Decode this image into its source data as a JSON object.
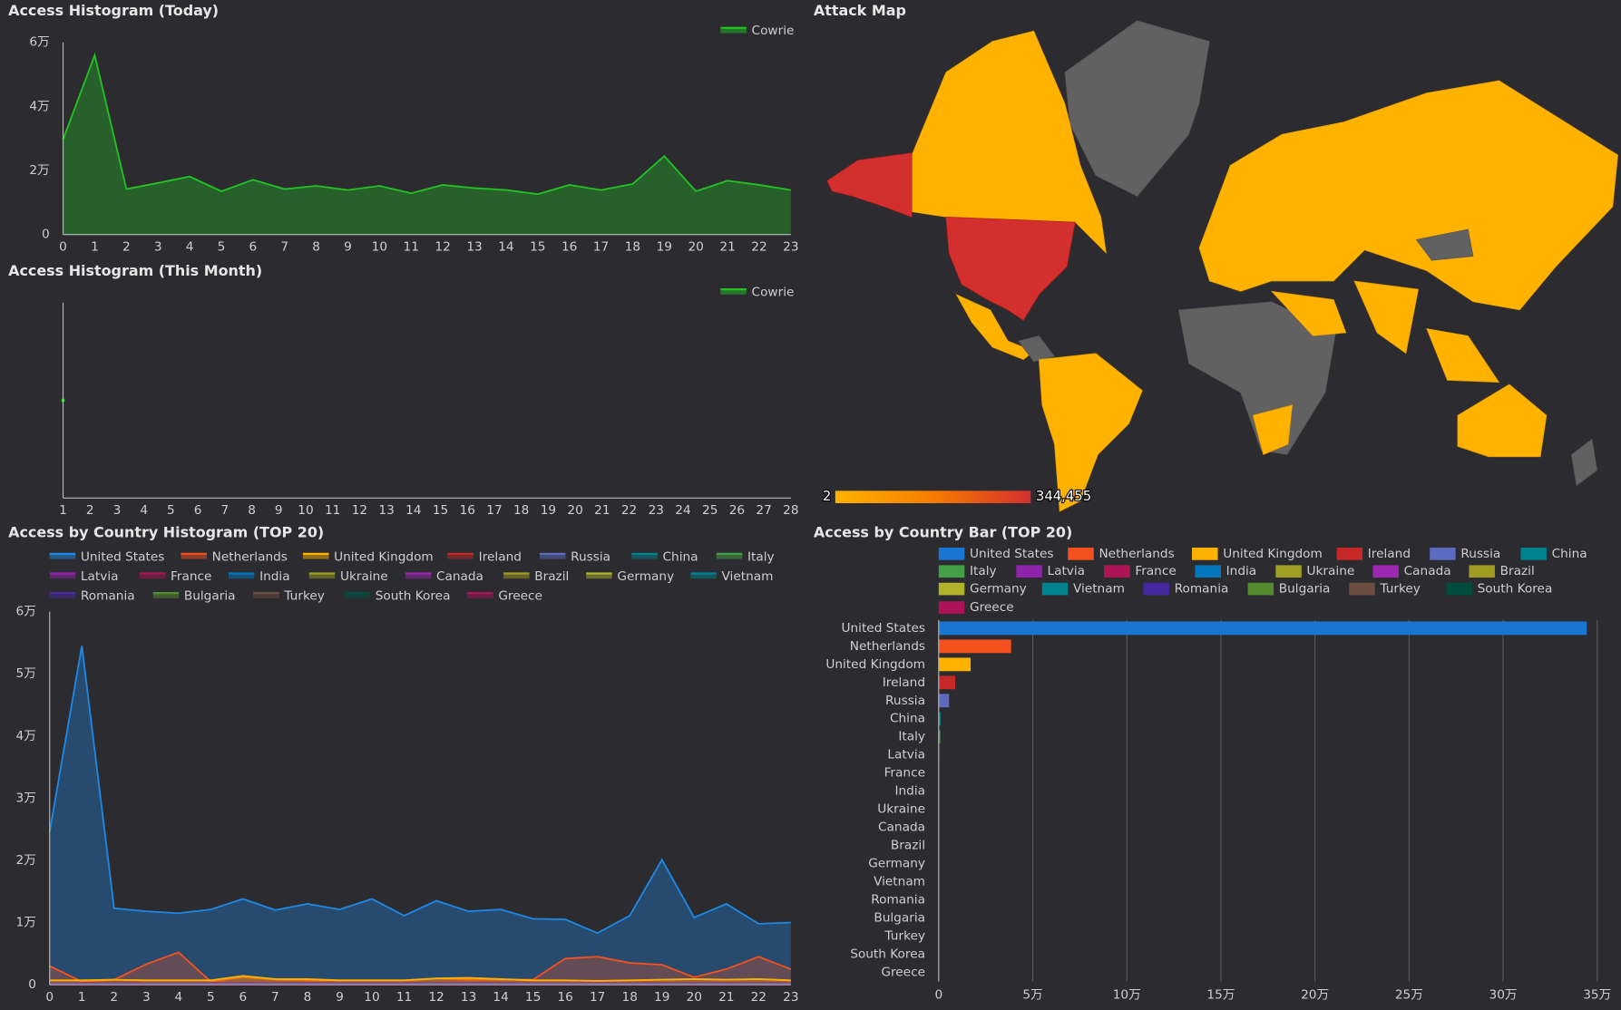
{
  "chart_data": [
    {
      "type": "area",
      "title": "Access Histogram (Today)",
      "x": [
        0,
        1,
        2,
        3,
        4,
        5,
        6,
        7,
        8,
        9,
        10,
        11,
        12,
        13,
        14,
        15,
        16,
        17,
        18,
        19,
        20,
        21,
        22,
        23
      ],
      "xlim": [
        0,
        23
      ],
      "ylim": [
        0,
        60000
      ],
      "yticks": [
        0,
        {
          "value": 20000,
          "label": "2万"
        },
        {
          "value": 40000,
          "label": "4万"
        },
        {
          "value": 60000,
          "label": "6万"
        }
      ],
      "grid": false,
      "legend": "top-right",
      "series": [
        {
          "name": "Cowrie",
          "color": "#22c222",
          "values": [
            29700,
            56000,
            14200,
            16100,
            18100,
            13500,
            17100,
            14200,
            15200,
            13900,
            15200,
            12900,
            15500,
            14500,
            13900,
            12600,
            15500,
            13900,
            15800,
            24500,
            13500,
            16800,
            15500,
            13900
          ]
        }
      ]
    },
    {
      "type": "area",
      "title": "Access Histogram (This Month)",
      "x": [
        1,
        2,
        3,
        4,
        5,
        6,
        7,
        8,
        9,
        10,
        11,
        12,
        13,
        14,
        15,
        16,
        17,
        18,
        19,
        20,
        21,
        22,
        23,
        24,
        25,
        26,
        27,
        28
      ],
      "xlim": [
        1,
        28
      ],
      "ylim": [
        0,
        844000
      ],
      "grid": false,
      "legend": "top-right",
      "series": [
        {
          "name": "Cowrie",
          "color": "#22c222",
          "values": [
            422000,
            null,
            null,
            null,
            null,
            null,
            null,
            null,
            null,
            null,
            null,
            null,
            null,
            null,
            null,
            null,
            null,
            null,
            null,
            null,
            null,
            null,
            null,
            null,
            null,
            null,
            null,
            null
          ]
        }
      ]
    },
    {
      "type": "area",
      "title": "Access by Country Histogram (TOP 20)",
      "x": [
        0,
        1,
        2,
        3,
        4,
        5,
        6,
        7,
        8,
        9,
        10,
        11,
        12,
        13,
        14,
        15,
        16,
        17,
        18,
        19,
        20,
        21,
        22,
        23
      ],
      "xlim": [
        0,
        23
      ],
      "ylim": [
        0,
        60000
      ],
      "yticks": [
        0,
        {
          "value": 10000,
          "label": "1万"
        },
        {
          "value": 20000,
          "label": "2万"
        },
        {
          "value": 30000,
          "label": "3万"
        },
        {
          "value": 40000,
          "label": "4万"
        },
        {
          "value": 50000,
          "label": "5万"
        },
        {
          "value": 60000,
          "label": "6万"
        }
      ],
      "grid": false,
      "legend": "top-left",
      "series": [
        {
          "name": "United States",
          "color": "#1e88e5",
          "values": [
            24600,
            54500,
            12300,
            11800,
            11500,
            12100,
            13800,
            12000,
            13000,
            12100,
            13800,
            11100,
            13500,
            11800,
            12100,
            10600,
            10500,
            8300,
            11100,
            20100,
            10800,
            13000,
            9800,
            10000
          ]
        },
        {
          "name": "Netherlands",
          "color": "#f4511e",
          "values": [
            3000,
            500,
            800,
            3300,
            5200,
            500,
            1200,
            800,
            700,
            700,
            700,
            700,
            1000,
            800,
            800,
            800,
            4200,
            4500,
            3500,
            3200,
            1200,
            2500,
            4500,
            2500
          ]
        },
        {
          "name": "United Kingdom",
          "color": "#ffb300",
          "values": [
            700,
            700,
            800,
            700,
            700,
            700,
            1400,
            900,
            900,
            700,
            700,
            700,
            1000,
            1100,
            900,
            700,
            700,
            600,
            700,
            800,
            900,
            800,
            900,
            700
          ]
        },
        {
          "name": "Ireland",
          "color": "#c62828",
          "values": [
            330,
            330,
            330,
            330,
            330,
            330,
            330,
            330,
            330,
            330,
            330,
            330,
            330,
            330,
            330,
            330,
            330,
            330,
            330,
            330,
            330,
            330,
            330,
            330
          ]
        },
        {
          "name": "Russia",
          "color": "#5c6bc0",
          "values": [
            220,
            220,
            220,
            220,
            220,
            220,
            220,
            220,
            220,
            220,
            220,
            220,
            220,
            220,
            220,
            220,
            220,
            220,
            220,
            220,
            220,
            220,
            220,
            220
          ]
        },
        {
          "name": "China",
          "color": "#00838f",
          "values": [
            40,
            40,
            40,
            40,
            40,
            40,
            40,
            40,
            40,
            40,
            40,
            40,
            40,
            40,
            40,
            40,
            40,
            40,
            40,
            40,
            40,
            40,
            40,
            40
          ]
        },
        {
          "name": "Italy",
          "color": "#43a047",
          "values": [
            30,
            30,
            30,
            30,
            30,
            30,
            30,
            30,
            30,
            30,
            30,
            30,
            30,
            30,
            30,
            30,
            30,
            30,
            30,
            30,
            30,
            30,
            30,
            30
          ]
        },
        {
          "name": "Latvia",
          "color": "#8e24aa",
          "values": [
            12,
            12,
            12,
            12,
            12,
            12,
            12,
            12,
            12,
            12,
            12,
            12,
            12,
            12,
            12,
            12,
            12,
            12,
            12,
            12,
            12,
            12,
            12,
            12
          ]
        },
        {
          "name": "France",
          "color": "#ad1457",
          "values": [
            5,
            5,
            5,
            5,
            5,
            5,
            5,
            5,
            5,
            5,
            5,
            5,
            5,
            5,
            5,
            5,
            5,
            5,
            5,
            5,
            5,
            5,
            5,
            5
          ]
        },
        {
          "name": "India",
          "color": "#0277bd",
          "values": [
            4,
            4,
            4,
            4,
            4,
            4,
            4,
            4,
            4,
            4,
            4,
            4,
            4,
            4,
            4,
            4,
            4,
            4,
            4,
            4,
            4,
            4,
            4,
            4
          ]
        },
        {
          "name": "Ukraine",
          "color": "#9e9d24",
          "values": [
            4,
            4,
            4,
            4,
            4,
            4,
            4,
            4,
            4,
            4,
            4,
            4,
            4,
            4,
            4,
            4,
            4,
            4,
            4,
            4,
            4,
            4,
            4,
            4
          ]
        },
        {
          "name": "Canada",
          "color": "#9c27b0",
          "values": [
            3,
            3,
            3,
            3,
            3,
            3,
            3,
            3,
            3,
            3,
            3,
            3,
            3,
            3,
            3,
            3,
            3,
            3,
            3,
            3,
            3,
            3,
            3,
            3
          ]
        },
        {
          "name": "Brazil",
          "color": "#a09b22",
          "values": [
            3,
            3,
            3,
            3,
            3,
            3,
            3,
            3,
            3,
            3,
            3,
            3,
            3,
            3,
            3,
            3,
            3,
            3,
            3,
            3,
            3,
            3,
            3,
            3
          ]
        },
        {
          "name": "Germany",
          "color": "#afb42b",
          "values": [
            3,
            3,
            3,
            3,
            3,
            3,
            3,
            3,
            3,
            3,
            3,
            3,
            3,
            3,
            3,
            3,
            3,
            3,
            3,
            3,
            3,
            3,
            3,
            3
          ]
        },
        {
          "name": "Vietnam",
          "color": "#00838f",
          "values": [
            2,
            2,
            2,
            2,
            2,
            2,
            2,
            2,
            2,
            2,
            2,
            2,
            2,
            2,
            2,
            2,
            2,
            2,
            2,
            2,
            2,
            2,
            2,
            2
          ]
        },
        {
          "name": "Romania",
          "color": "#4527a0",
          "values": [
            2,
            2,
            2,
            2,
            2,
            2,
            2,
            2,
            2,
            2,
            2,
            2,
            2,
            2,
            2,
            2,
            2,
            2,
            2,
            2,
            2,
            2,
            2,
            2
          ]
        },
        {
          "name": "Bulgaria",
          "color": "#558b2f",
          "values": [
            2,
            2,
            2,
            2,
            2,
            2,
            2,
            2,
            2,
            2,
            2,
            2,
            2,
            2,
            2,
            2,
            2,
            2,
            2,
            2,
            2,
            2,
            2,
            2
          ]
        },
        {
          "name": "Turkey",
          "color": "#6d4c41",
          "values": [
            1,
            1,
            1,
            1,
            1,
            1,
            1,
            1,
            1,
            1,
            1,
            1,
            1,
            1,
            1,
            1,
            1,
            1,
            1,
            1,
            1,
            1,
            1,
            1
          ]
        },
        {
          "name": "South Korea",
          "color": "#004d40",
          "values": [
            1,
            1,
            1,
            1,
            1,
            1,
            1,
            1,
            1,
            1,
            1,
            1,
            1,
            1,
            1,
            1,
            1,
            1,
            1,
            1,
            1,
            1,
            1,
            1
          ]
        },
        {
          "name": "Greece",
          "color": "#ad1457",
          "values": [
            1,
            1,
            1,
            1,
            1,
            1,
            1,
            1,
            1,
            1,
            1,
            1,
            1,
            1,
            1,
            1,
            1,
            1,
            1,
            1,
            1,
            1,
            1,
            1
          ]
        }
      ]
    },
    {
      "type": "hbar",
      "title": "Access by Country Bar (TOP 20)",
      "categories": [
        "United States",
        "Netherlands",
        "United Kingdom",
        "Ireland",
        "Russia",
        "China",
        "Italy",
        "Latvia",
        "France",
        "India",
        "Ukraine",
        "Canada",
        "Brazil",
        "Germany",
        "Vietnam",
        "Romania",
        "Bulgaria",
        "Turkey",
        "South Korea",
        "Greece"
      ],
      "values": [
        344455,
        38500,
        17000,
        8800,
        5500,
        1000,
        800,
        300,
        150,
        100,
        90,
        80,
        70,
        60,
        50,
        45,
        40,
        30,
        25,
        20
      ],
      "colors": [
        "#1976d2",
        "#f4511e",
        "#ffb300",
        "#c62828",
        "#5c6bc0",
        "#00838f",
        "#43a047",
        "#8e24aa",
        "#ad1457",
        "#0277bd",
        "#9e9d24",
        "#9c27b0",
        "#a09b22",
        "#afb42b",
        "#00838f",
        "#4527a0",
        "#558b2f",
        "#6d4c41",
        "#004d40",
        "#ad1457"
      ],
      "xlim": [
        0,
        350000
      ],
      "xticks": [
        0,
        {
          "value": 50000,
          "label": "5万"
        },
        {
          "value": 100000,
          "label": "10万"
        },
        {
          "value": 150000,
          "label": "15万"
        },
        {
          "value": 200000,
          "label": "20万"
        },
        {
          "value": 250000,
          "label": "25万"
        },
        {
          "value": 300000,
          "label": "30万"
        },
        {
          "value": 350000,
          "label": "35万"
        }
      ],
      "grid": true,
      "legend": "top-left"
    },
    {
      "type": "map",
      "title": "Attack Map",
      "colorbar_ticks": [
        2,
        {
          "value": 344455,
          "label": "344,455"
        }
      ],
      "colors": [
        "#ffb300",
        "#f57c00",
        "#d32f2f"
      ],
      "legend": "bottom-left"
    }
  ]
}
